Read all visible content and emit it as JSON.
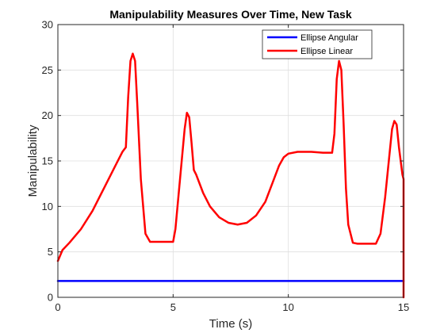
{
  "chart_data": {
    "type": "line",
    "title": "Manipulability Measures Over Time, New Task",
    "xlabel": "Time (s)",
    "ylabel": "Manipulability",
    "xlim": [
      0,
      15
    ],
    "ylim": [
      0,
      30
    ],
    "xticks": [
      "0",
      "5",
      "10",
      "15"
    ],
    "yticks": [
      "0",
      "5",
      "10",
      "15",
      "20",
      "25",
      "30"
    ],
    "grid": true,
    "legend_position": "top-right",
    "series": [
      {
        "name": "Ellipse Angular",
        "color": "#0000ff",
        "x": [
          0,
          15
        ],
        "y": [
          1.8,
          1.8
        ]
      },
      {
        "name": "Ellipse Linear",
        "color": "#ff0000",
        "x": [
          0,
          0.2,
          0.5,
          1.0,
          1.5,
          2.0,
          2.5,
          2.8,
          2.95,
          3.05,
          3.15,
          3.25,
          3.35,
          3.45,
          3.6,
          3.8,
          4.0,
          4.1,
          4.3,
          4.6,
          5.0,
          5.1,
          5.3,
          5.5,
          5.6,
          5.7,
          5.8,
          5.9,
          6.0,
          6.3,
          6.6,
          7.0,
          7.4,
          7.8,
          8.2,
          8.6,
          9.0,
          9.3,
          9.6,
          9.8,
          10.0,
          10.4,
          11.0,
          11.5,
          11.9,
          12.0,
          12.1,
          12.2,
          12.3,
          12.4,
          12.5,
          12.6,
          12.8,
          13.0,
          13.2,
          13.5,
          13.8,
          14.0,
          14.2,
          14.4,
          14.5,
          14.6,
          14.7,
          14.8,
          14.9,
          14.95,
          15.0,
          15.0
        ],
        "y": [
          4.0,
          5.2,
          6.0,
          7.5,
          9.5,
          12.0,
          14.5,
          16.0,
          16.5,
          22.0,
          26.0,
          26.8,
          26.0,
          21.0,
          13.0,
          7.0,
          6.1,
          6.1,
          6.1,
          6.1,
          6.1,
          7.5,
          13.0,
          18.5,
          20.3,
          19.8,
          17.0,
          14.0,
          13.5,
          11.5,
          10.0,
          8.8,
          8.2,
          8.0,
          8.2,
          9.0,
          10.5,
          12.5,
          14.5,
          15.4,
          15.8,
          16.0,
          16.0,
          15.9,
          15.9,
          18.0,
          24.0,
          26.0,
          25.0,
          19.0,
          12.0,
          8.0,
          6.0,
          5.9,
          5.9,
          5.9,
          5.9,
          7.0,
          11.0,
          16.0,
          18.5,
          19.4,
          19.0,
          16.5,
          14.5,
          13.5,
          13.0,
          0.0
        ]
      }
    ]
  }
}
